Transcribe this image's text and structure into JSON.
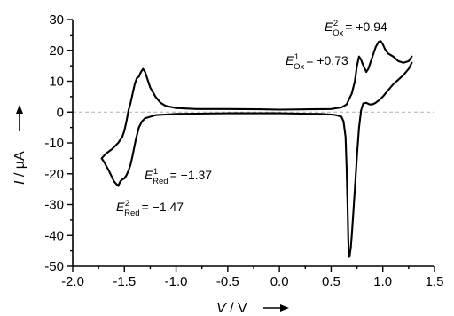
{
  "chart_data": {
    "type": "line",
    "xlabel_symbol": "V",
    "xlabel_unit": "V",
    "ylabel_symbol": "I",
    "ylabel_unit": "µA",
    "xlim": [
      -2.0,
      1.5
    ],
    "ylim": [
      -50,
      30
    ],
    "xticks": [
      -2.0,
      -1.5,
      -1.0,
      -0.5,
      0.0,
      0.5,
      1.0,
      1.5
    ],
    "xtick_labels": [
      "-2.0",
      "-1.5",
      "-1.0",
      "-0.5",
      "0.0",
      "0.5",
      "1.0",
      "1.5"
    ],
    "yticks": [
      -50,
      -40,
      -30,
      -20,
      -10,
      0,
      10,
      20,
      30
    ],
    "ytick_labels": [
      "-50",
      "-40",
      "-30",
      "-20",
      "-10",
      "0",
      "10",
      "20",
      "30"
    ],
    "zero_line": true,
    "grid": false,
    "series": [
      {
        "color": "#000000",
        "x": [
          1.28,
          1.25,
          1.2,
          1.15,
          1.1,
          1.05,
          1.0,
          0.97,
          0.93,
          0.9,
          0.87,
          0.84,
          0.81,
          0.79,
          0.77,
          0.75,
          0.73,
          0.71,
          0.7,
          0.69,
          0.68,
          0.675,
          0.67,
          0.665,
          0.66,
          0.655,
          0.65,
          0.64,
          0.62,
          0.6,
          0.55,
          0.5,
          0.4,
          0.2,
          0.0,
          -0.2,
          -0.5,
          -0.8,
          -1.0,
          -1.1,
          -1.2,
          -1.25,
          -1.3,
          -1.33,
          -1.36,
          -1.39,
          -1.42,
          -1.44,
          -1.46,
          -1.48,
          -1.5,
          -1.52,
          -1.54,
          -1.56,
          -1.6,
          -1.65,
          -1.7,
          -1.72,
          -1.68,
          -1.62,
          -1.56,
          -1.52,
          -1.5,
          -1.48,
          -1.46,
          -1.44,
          -1.42,
          -1.4,
          -1.38,
          -1.36,
          -1.34,
          -1.32,
          -1.3,
          -1.28,
          -1.25,
          -1.2,
          -1.15,
          -1.1,
          -1.0,
          -0.8,
          -0.5,
          -0.2,
          0.0,
          0.3,
          0.5,
          0.6,
          0.65,
          0.7,
          0.73,
          0.75,
          0.77,
          0.79,
          0.8,
          0.82,
          0.84,
          0.86,
          0.88,
          0.9,
          0.93,
          0.96,
          0.98,
          1.0,
          1.02,
          1.05,
          1.1,
          1.15,
          1.2,
          1.25,
          1.28
        ],
        "y": [
          16.0,
          14.0,
          12.0,
          10.5,
          9.0,
          7.0,
          5.0,
          4.0,
          3.0,
          2.5,
          2.5,
          3.0,
          2.8,
          0.5,
          -5.0,
          -14.0,
          -25.0,
          -35.0,
          -40.0,
          -44.0,
          -46.5,
          -47.0,
          -45.0,
          -40.0,
          -32.0,
          -25.0,
          -18.0,
          -8.0,
          -3.0,
          -1.5,
          -1.0,
          -0.8,
          -0.6,
          -0.5,
          -0.4,
          -0.4,
          -0.4,
          -0.5,
          -0.6,
          -0.8,
          -1.0,
          -1.5,
          -2.0,
          -3.0,
          -5.0,
          -9.0,
          -14.0,
          -17.0,
          -19.0,
          -20.5,
          -21.5,
          -21.8,
          -22.5,
          -24.0,
          -22.5,
          -19.0,
          -16.0,
          -15.0,
          -13.5,
          -12.0,
          -10.0,
          -8.0,
          -6.0,
          -3.0,
          0.5,
          3.0,
          6.0,
          9.0,
          11.0,
          11.5,
          13.0,
          14.0,
          13.0,
          11.0,
          8.0,
          5.0,
          3.0,
          2.0,
          1.3,
          1.0,
          1.0,
          0.9,
          0.8,
          0.9,
          1.0,
          1.5,
          2.5,
          6.0,
          10.0,
          15.0,
          18.0,
          17.0,
          16.0,
          14.5,
          13.0,
          14.0,
          16.0,
          18.0,
          21.0,
          22.8,
          23.0,
          22.0,
          20.5,
          19.0,
          18.0,
          16.5,
          16.0,
          16.5,
          18.0
        ]
      }
    ],
    "annotations": [
      {
        "symbol": "E",
        "sup": "2",
        "sub": "Ox",
        "value": "= +0.94"
      },
      {
        "symbol": "E",
        "sup": "1",
        "sub": "Ox",
        "value": "= +0.73"
      },
      {
        "symbol": "E",
        "sup": "1",
        "sub": "Red",
        "value": "= −1.37"
      },
      {
        "symbol": "E",
        "sup": "2",
        "sub": "Red",
        "value": "= −1.47"
      }
    ]
  }
}
